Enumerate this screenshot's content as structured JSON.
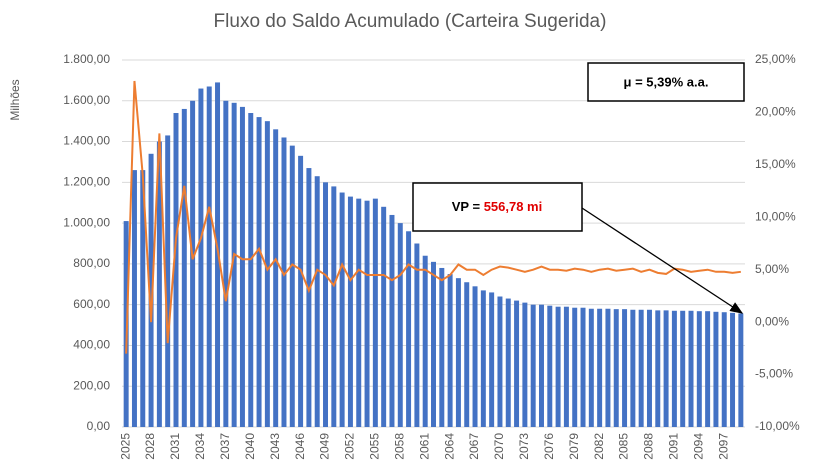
{
  "chart_data": {
    "type": "bar_line",
    "title": "Fluxo do Saldo Acumulado (Carteira Sugerida)",
    "y_label": "Milhões",
    "mu_label": "μ = 5,39% a.a.",
    "vp_label": "VP = ",
    "vp_value": "556,78 mi",
    "grid": true,
    "categories": [
      "2025",
      null,
      null,
      "2028",
      null,
      null,
      "2031",
      null,
      null,
      "2034",
      null,
      null,
      "2037",
      null,
      null,
      "2040",
      null,
      null,
      "2043",
      null,
      null,
      "2046",
      null,
      null,
      "2049",
      null,
      null,
      "2052",
      null,
      null,
      "2055",
      null,
      null,
      "2058",
      null,
      null,
      "2061",
      null,
      null,
      "2064",
      null,
      null,
      "2067",
      null,
      null,
      "2070",
      null,
      null,
      "2073",
      null,
      null,
      "2076",
      null,
      null,
      "2079",
      null,
      null,
      "2082",
      null,
      null,
      "2085",
      null,
      null,
      "2088",
      null,
      null,
      "2091",
      null,
      null,
      "2094",
      null,
      null,
      "2097",
      null,
      null
    ],
    "series": [
      {
        "kind": "bar",
        "axis": "y",
        "color": "#4472c4",
        "values": [
          1010,
          1260,
          1260,
          1340,
          1400,
          1430,
          1540,
          1560,
          1600,
          1660,
          1670,
          1690,
          1600,
          1590,
          1570,
          1540,
          1520,
          1500,
          1460,
          1420,
          1380,
          1330,
          1270,
          1230,
          1200,
          1180,
          1150,
          1130,
          1120,
          1110,
          1120,
          1080,
          1040,
          1000,
          960,
          900,
          840,
          810,
          780,
          750,
          730,
          710,
          690,
          670,
          660,
          640,
          630,
          620,
          610,
          600,
          600,
          595,
          590,
          590,
          585,
          585,
          580,
          580,
          580,
          578,
          578,
          575,
          575,
          575,
          572,
          572,
          570,
          570,
          570,
          568,
          568,
          565,
          563,
          560,
          557
        ]
      },
      {
        "kind": "line",
        "axis": "y2",
        "color": "#ed7d31",
        "values": [
          -3,
          23,
          14,
          0,
          18,
          -2,
          8,
          13,
          6,
          8,
          11,
          7,
          2,
          6.5,
          6,
          6,
          7,
          5,
          6,
          4.5,
          5.5,
          5,
          3,
          5,
          4.5,
          3.5,
          5.5,
          4,
          5,
          4.5,
          4.5,
          4.5,
          4,
          4.5,
          5.5,
          5,
          5,
          4.5,
          4,
          4.5,
          5.5,
          5,
          5,
          4.5,
          5,
          5.3,
          5.2,
          5,
          4.8,
          5,
          5.3,
          5,
          5,
          4.9,
          5.1,
          5,
          4.8,
          5,
          5.1,
          4.9,
          5,
          5.1,
          4.8,
          5,
          4.7,
          4.6,
          5.1,
          5,
          4.8,
          4.9,
          5,
          4.8,
          4.8,
          4.7,
          4.8
        ]
      }
    ],
    "ylim": [
      0,
      1800
    ],
    "yticks": [
      {
        "value": 0,
        "label": "0,00"
      },
      {
        "value": 200,
        "label": "200,00"
      },
      {
        "value": 400,
        "label": "400,00"
      },
      {
        "value": 600,
        "label": "600,00"
      },
      {
        "value": 800,
        "label": "800,00"
      },
      {
        "value": 1000,
        "label": "1.000,00"
      },
      {
        "value": 1200,
        "label": "1.200,00"
      },
      {
        "value": 1400,
        "label": "1.400,00"
      },
      {
        "value": 1600,
        "label": "1.600,00"
      },
      {
        "value": 1800,
        "label": "1.800,00"
      }
    ],
    "y2lim": [
      -10,
      25
    ],
    "y2ticks": [
      {
        "value": -10,
        "label": "-10,00%"
      },
      {
        "value": -5,
        "label": "-5,00%"
      },
      {
        "value": 0,
        "label": "0,00%"
      },
      {
        "value": 5,
        "label": "5,00%"
      },
      {
        "value": 10,
        "label": "10,00%"
      },
      {
        "value": 15,
        "label": "15,00%"
      },
      {
        "value": 20,
        "label": "20,00%"
      },
      {
        "value": 25,
        "label": "25,00%"
      }
    ]
  }
}
